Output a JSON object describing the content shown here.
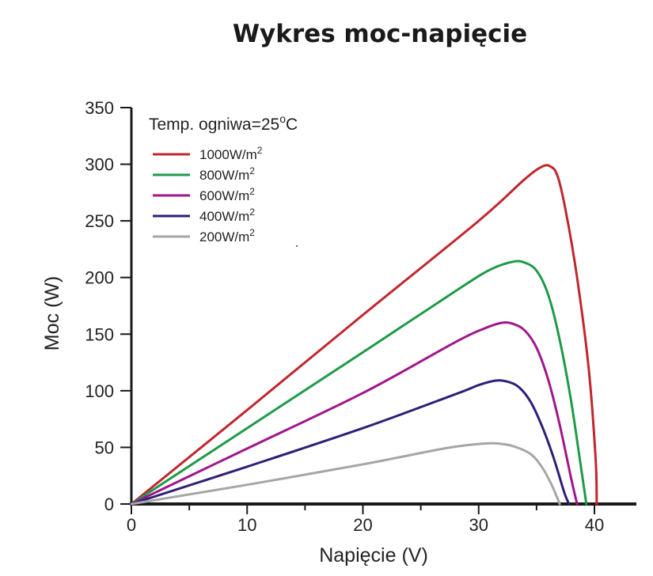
{
  "chart_data": {
    "type": "line",
    "title": "Wykres moc-napięcie",
    "xlabel": "Napięcie (V)",
    "ylabel": "Moc (W)",
    "xlim": [
      0,
      44
    ],
    "ylim": [
      0,
      350
    ],
    "xticks": [
      0,
      10,
      20,
      30,
      40
    ],
    "yticks": [
      0,
      50,
      100,
      150,
      200,
      250,
      300,
      350
    ],
    "legend_title": "Temp. ogniwa=25°C",
    "legend_title_parts": {
      "prefix": "Temp. ogniwa=25",
      "superscript": "o",
      "suffix": "C"
    },
    "legend_position": "top-left",
    "series": [
      {
        "name": "1000W/m2",
        "label": "1000W/m",
        "sup": "2",
        "color": "#c0272d",
        "points": [
          [
            0,
            0
          ],
          [
            10,
            83
          ],
          [
            20,
            167
          ],
          [
            30,
            250
          ],
          [
            34,
            287
          ],
          [
            35.5,
            298
          ],
          [
            36.2,
            298
          ],
          [
            36.8,
            290
          ],
          [
            37.5,
            260
          ],
          [
            38.5,
            200
          ],
          [
            39.5,
            120
          ],
          [
            40.1,
            40
          ],
          [
            40.2,
            0
          ]
        ]
      },
      {
        "name": "800W/m2",
        "label": "800W/m",
        "sup": "2",
        "color": "#1e9a48",
        "points": [
          [
            0,
            0
          ],
          [
            10,
            67
          ],
          [
            20,
            134
          ],
          [
            28,
            188
          ],
          [
            31,
            207
          ],
          [
            33,
            214
          ],
          [
            34,
            213
          ],
          [
            35,
            206
          ],
          [
            36,
            185
          ],
          [
            37,
            145
          ],
          [
            38,
            90
          ],
          [
            38.8,
            35
          ],
          [
            39.3,
            0
          ]
        ]
      },
      {
        "name": "600W/m2",
        "label": "600W/m",
        "sup": "2",
        "color": "#a0168c",
        "points": [
          [
            0,
            0
          ],
          [
            10,
            49
          ],
          [
            20,
            98
          ],
          [
            28,
            143
          ],
          [
            30.5,
            155
          ],
          [
            32,
            160
          ],
          [
            33,
            159
          ],
          [
            34,
            153
          ],
          [
            35,
            138
          ],
          [
            36,
            110
          ],
          [
            37,
            70
          ],
          [
            38,
            22
          ],
          [
            38.5,
            0
          ]
        ]
      },
      {
        "name": "400W/m2",
        "label": "400W/m",
        "sup": "2",
        "color": "#2e1f78",
        "points": [
          [
            0,
            0
          ],
          [
            10,
            33
          ],
          [
            20,
            67
          ],
          [
            28,
            97
          ],
          [
            30,
            105
          ],
          [
            31.5,
            109
          ],
          [
            32.5,
            108
          ],
          [
            33.5,
            103
          ],
          [
            34.5,
            90
          ],
          [
            35.5,
            68
          ],
          [
            36.5,
            40
          ],
          [
            37.4,
            10
          ],
          [
            37.8,
            0
          ]
        ]
      },
      {
        "name": "200W/m2",
        "label": "200W/m",
        "sup": "2",
        "color": "#a6a6a6",
        "points": [
          [
            0,
            0
          ],
          [
            10,
            17
          ],
          [
            20,
            35
          ],
          [
            27,
            49
          ],
          [
            30,
            53
          ],
          [
            31.5,
            53.5
          ],
          [
            33,
            51
          ],
          [
            34.5,
            44
          ],
          [
            35.5,
            32
          ],
          [
            36.3,
            17
          ],
          [
            36.8,
            5
          ],
          [
            37,
            0
          ]
        ]
      }
    ]
  }
}
